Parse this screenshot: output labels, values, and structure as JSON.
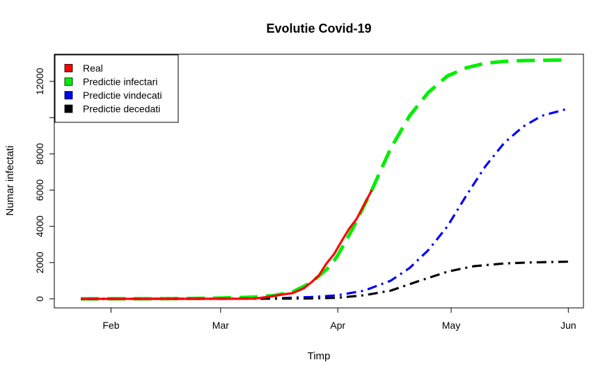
{
  "chart_data": {
    "type": "line",
    "title": "Evolutie Covid-19",
    "xlabel": "Timp",
    "ylabel": "Numar infectati",
    "x_range": [
      "2020-01-17",
      "2020-06-05"
    ],
    "ylim": [
      -500,
      13500
    ],
    "x_ticks": [
      {
        "date": "2020-02-01",
        "label": "Feb"
      },
      {
        "date": "2020-03-01",
        "label": "Mar"
      },
      {
        "date": "2020-04-01",
        "label": "Apr"
      },
      {
        "date": "2020-05-01",
        "label": "May"
      },
      {
        "date": "2020-06-01",
        "label": "Jun"
      }
    ],
    "y_ticks": [
      {
        "value": 0,
        "label": "0"
      },
      {
        "value": 2000,
        "label": "2000"
      },
      {
        "value": 4000,
        "label": "4000"
      },
      {
        "value": 6000,
        "label": "6000"
      },
      {
        "value": 8000,
        "label": "8000"
      },
      {
        "value": 12000,
        "label": "12000"
      }
    ],
    "grid": false,
    "legend_position": "top-left",
    "series": [
      {
        "name": "Real",
        "color": "#ff0000",
        "dash": "solid",
        "x": [
          "2020-01-24",
          "2020-02-26",
          "2020-03-06",
          "2020-03-10",
          "2020-03-14",
          "2020-03-18",
          "2020-03-20",
          "2020-03-23",
          "2020-03-25",
          "2020-03-27",
          "2020-03-29",
          "2020-03-31",
          "2020-04-02",
          "2020-04-04",
          "2020-04-06",
          "2020-04-08",
          "2020-04-10"
        ],
        "values": [
          0,
          1,
          4,
          15,
          123,
          260,
          308,
          576,
          906,
          1292,
          1952,
          2460,
          3183,
          3864,
          4417,
          5202,
          6000
        ]
      },
      {
        "name": "Predictie infectari",
        "color": "#00ee00",
        "dash": "long-dash",
        "x": [
          "2020-01-24",
          "2020-02-15",
          "2020-03-01",
          "2020-03-10",
          "2020-03-15",
          "2020-03-20",
          "2020-03-25",
          "2020-03-30",
          "2020-04-01",
          "2020-04-05",
          "2020-04-10",
          "2020-04-15",
          "2020-04-20",
          "2020-04-25",
          "2020-04-30",
          "2020-05-05",
          "2020-05-10",
          "2020-05-15",
          "2020-05-20",
          "2020-06-01"
        ],
        "values": [
          0,
          5,
          40,
          100,
          180,
          380,
          900,
          1800,
          2400,
          3900,
          6000,
          8300,
          10100,
          11400,
          12300,
          12750,
          13000,
          13100,
          13150,
          13180
        ]
      },
      {
        "name": "Predictie vindecati",
        "color": "#0000ff",
        "dash": "dot-dash",
        "x": [
          "2020-01-24",
          "2020-03-01",
          "2020-03-15",
          "2020-03-25",
          "2020-04-01",
          "2020-04-08",
          "2020-04-15",
          "2020-04-20",
          "2020-04-25",
          "2020-04-30",
          "2020-05-05",
          "2020-05-10",
          "2020-05-15",
          "2020-05-20",
          "2020-05-25",
          "2020-06-01"
        ],
        "values": [
          0,
          5,
          30,
          100,
          200,
          450,
          1000,
          1700,
          2700,
          4000,
          5700,
          7300,
          8600,
          9500,
          10100,
          10500
        ]
      },
      {
        "name": "Predictie decedati",
        "color": "#000000",
        "dash": "dot-dash",
        "x": [
          "2020-01-24",
          "2020-03-01",
          "2020-03-15",
          "2020-03-25",
          "2020-04-01",
          "2020-04-08",
          "2020-04-15",
          "2020-04-22",
          "2020-04-30",
          "2020-05-07",
          "2020-05-15",
          "2020-05-22",
          "2020-06-01"
        ],
        "values": [
          0,
          0,
          5,
          20,
          60,
          200,
          450,
          950,
          1500,
          1800,
          1950,
          2010,
          2050
        ]
      }
    ]
  }
}
